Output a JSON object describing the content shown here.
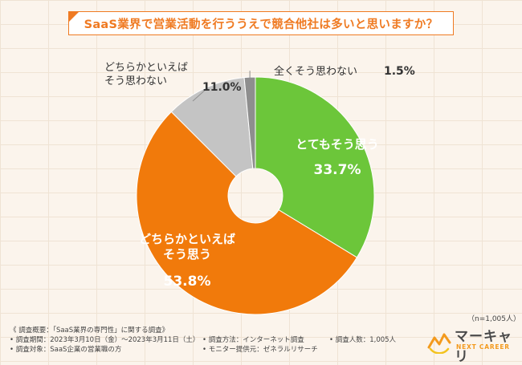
{
  "title": "SaaS業界で営業活動を行ううえで競合他社は多いと思いますか？",
  "chart_data": {
    "type": "pie",
    "variant": "donut",
    "slices": [
      {
        "label": "とてもそう思う",
        "value": 33.7,
        "value_label": "33.7%",
        "color": "#6cc63a"
      },
      {
        "label": "どちらかといえばそう思う",
        "value": 53.8,
        "value_label": "53.8%",
        "color": "#f17a0b"
      },
      {
        "label": "どちらかといえばそう思わない",
        "value": 11.0,
        "value_label": "11.0%",
        "color": "#c4c4c4"
      },
      {
        "label": "全くそう思わない",
        "value": 1.5,
        "value_label": "1.5%",
        "color": "#8e8e8e"
      }
    ]
  },
  "sample_size": "（n=1,005人）",
  "footer": {
    "summary": "《 調査概要：「SaaS業界の専門性」に関する調査》",
    "period": "• 調査期間：2023年3月10日（金）〜2023年3月11日（土）",
    "method": "• 調査方法：インターネット調査",
    "count": "• 調査人数：1,005人",
    "target": "• 調査対象：SaaS企業の営業職の方",
    "provider": "• モニター提供元：ゼネラルリサーチ"
  },
  "logo": {
    "main": "マーキャリ",
    "sub": "NEXT CAREER"
  }
}
